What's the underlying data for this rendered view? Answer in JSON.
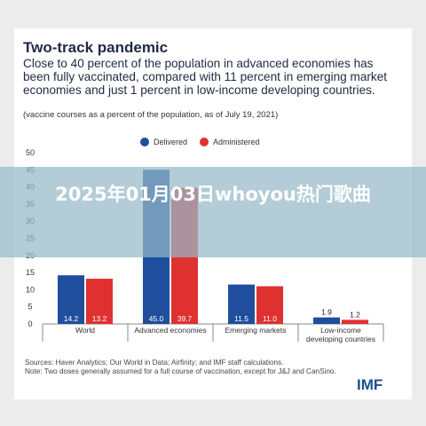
{
  "header": {
    "title": "Two-track pandemic",
    "subtitle": "Close to 40 percent of the population in advanced economies has been fully vaccinated, compared with 11 percent in emerging market economies and just 1 percent in low-income developing countries.",
    "note": "(vaccine courses as a percent of the population, as of July 19, 2021)"
  },
  "banner": {
    "text": "2025年01月03日whoyou热门歌曲"
  },
  "footer": {
    "sources": "Sources: Haver Analytics; Our World in Data; Airfinity; and IMF staff calculations.",
    "note": "Note: Two doses generally assumed for a full course of vaccination, except for J&J and CanSino.",
    "logo": "IMF"
  },
  "colors": {
    "delivered": "#1f4e9c",
    "administered": "#e03131",
    "text": "#1f2a44",
    "banner": "#96b9c8"
  },
  "chart_data": {
    "type": "bar",
    "categories": [
      "World",
      "Advanced economies",
      "Emerging markets",
      "Low-income developing countries"
    ],
    "category_lines": [
      [
        "World"
      ],
      [
        "Advanced economies"
      ],
      [
        "Emerging markets"
      ],
      [
        "Low-income",
        "developing countries"
      ]
    ],
    "series": [
      {
        "name": "Delivered",
        "values": [
          14.2,
          45.0,
          11.5,
          1.9
        ],
        "labels": [
          "14.2",
          "45.0",
          "11.5",
          "1.9"
        ]
      },
      {
        "name": "Administered",
        "values": [
          13.2,
          39.7,
          11.0,
          1.2
        ],
        "labels": [
          "13.2",
          "39.7",
          "11.0",
          "1.2"
        ]
      }
    ],
    "ylim": [
      0,
      50
    ],
    "yticks": [
      0,
      5,
      10,
      15,
      20,
      25,
      30,
      35,
      40,
      45,
      50
    ],
    "legend": "top-center",
    "grid": false
  }
}
